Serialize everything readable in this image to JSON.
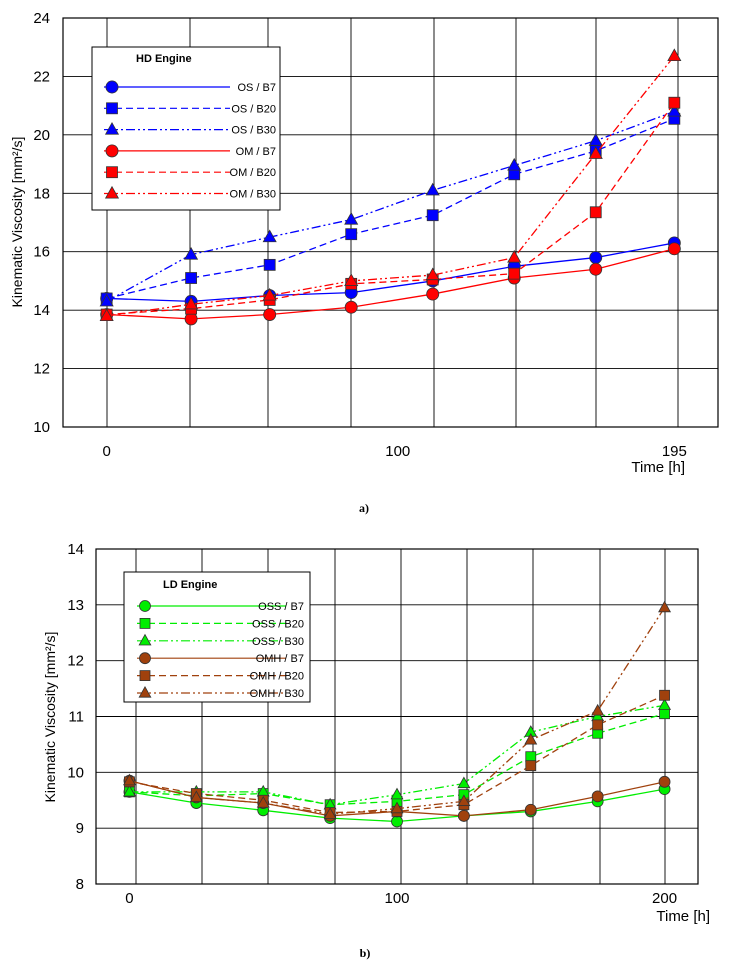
{
  "chart_data": [
    {
      "type": "line",
      "id": "a",
      "caption": "a)",
      "legend_title": "HD Engine",
      "ylabel": "Kinematic Viscosity [mm²/s]",
      "xlabel": "Time [h]",
      "x_ticks": [
        0,
        100,
        195
      ],
      "x_tick_labels": [
        "0",
        "100",
        "195"
      ],
      "y_ticks": [
        10,
        12,
        14,
        16,
        18,
        20,
        22,
        24
      ],
      "x_range": [
        -15,
        210
      ],
      "ylim": [
        10,
        24
      ],
      "grid": true,
      "legend_position": "top-left",
      "x": [
        0,
        29,
        56,
        84,
        112,
        140,
        168,
        195
      ],
      "series": [
        {
          "name": "OS / B7",
          "color": "#0000ff",
          "dash": "solid",
          "marker": "circle",
          "values": [
            14.4,
            14.3,
            14.5,
            14.6,
            15.0,
            15.5,
            15.8,
            16.3
          ]
        },
        {
          "name": "OS / B20",
          "color": "#0000ff",
          "dash": "dash",
          "marker": "square",
          "values": [
            14.4,
            15.1,
            15.55,
            16.6,
            17.25,
            18.65,
            19.45,
            20.55
          ]
        },
        {
          "name": "OS / B30",
          "color": "#0000ff",
          "dash": "dashdotdot",
          "marker": "triangle",
          "values": [
            14.3,
            15.9,
            16.5,
            17.1,
            18.1,
            18.95,
            19.8,
            20.8
          ]
        },
        {
          "name": "OM / B7",
          "color": "#ff0000",
          "dash": "solid",
          "marker": "circle",
          "values": [
            13.85,
            13.7,
            13.85,
            14.1,
            14.55,
            15.1,
            15.4,
            16.1
          ]
        },
        {
          "name": "OM / B20",
          "color": "#ff0000",
          "dash": "dash",
          "marker": "square",
          "values": [
            13.85,
            14.05,
            14.35,
            14.9,
            15.05,
            15.25,
            17.35,
            21.1
          ]
        },
        {
          "name": "OM / B30",
          "color": "#ff0000",
          "dash": "dashdotdot",
          "marker": "triangle",
          "values": [
            13.8,
            14.2,
            14.5,
            15.0,
            15.2,
            15.8,
            19.35,
            22.7
          ]
        }
      ]
    },
    {
      "type": "line",
      "id": "b",
      "caption": "b)",
      "legend_title": "LD Engine",
      "ylabel": "Kinematic Viscosity [mm²/s]",
      "xlabel": "Time [h]",
      "x_ticks": [
        0,
        100,
        200
      ],
      "x_tick_labels": [
        "0",
        "100",
        "200"
      ],
      "y_ticks": [
        8,
        9,
        10,
        11,
        12,
        13,
        14
      ],
      "x_range": [
        -12.5,
        212.5
      ],
      "ylim": [
        8,
        14
      ],
      "grid": true,
      "legend_position": "top-left",
      "x": [
        0,
        25,
        50,
        75,
        100,
        125,
        150,
        175,
        200
      ],
      "series": [
        {
          "name": "OSS / B7",
          "color": "#00ee00",
          "dash": "solid",
          "marker": "circle",
          "values": [
            9.65,
            9.45,
            9.32,
            9.18,
            9.12,
            9.22,
            9.3,
            9.48,
            9.7
          ]
        },
        {
          "name": "OSS / B20",
          "color": "#00ee00",
          "dash": "dash",
          "marker": "square",
          "values": [
            9.65,
            9.58,
            9.62,
            9.42,
            9.48,
            9.6,
            10.28,
            10.7,
            11.05
          ]
        },
        {
          "name": "OSS / B30",
          "color": "#00ee00",
          "dash": "dashdotdot",
          "marker": "triangle",
          "values": [
            9.65,
            9.65,
            9.65,
            9.42,
            9.6,
            9.8,
            10.72,
            11.0,
            11.2
          ]
        },
        {
          "name": "OMH / B7",
          "color": "#a0410d",
          "dash": "solid",
          "marker": "circle",
          "values": [
            9.85,
            9.55,
            9.45,
            9.22,
            9.3,
            9.22,
            9.33,
            9.57,
            9.83
          ]
        },
        {
          "name": "OMH / B20",
          "color": "#a0410d",
          "dash": "dash",
          "marker": "square",
          "values": [
            9.83,
            9.62,
            9.5,
            9.28,
            9.3,
            9.42,
            10.12,
            10.85,
            11.38
          ]
        },
        {
          "name": "OMH / B30",
          "color": "#a0410d",
          "dash": "dashdotdot",
          "marker": "triangle",
          "values": [
            9.85,
            9.55,
            9.45,
            9.25,
            9.35,
            9.48,
            10.58,
            11.1,
            12.95
          ]
        }
      ]
    }
  ]
}
